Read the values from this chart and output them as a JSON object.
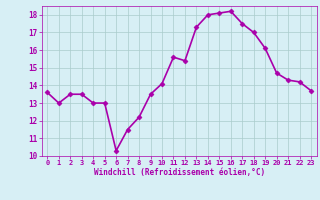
{
  "x": [
    0,
    1,
    2,
    3,
    4,
    5,
    6,
    7,
    8,
    9,
    10,
    11,
    12,
    13,
    14,
    15,
    16,
    17,
    18,
    19,
    20,
    21,
    22,
    23
  ],
  "y": [
    13.6,
    13.0,
    13.5,
    13.5,
    13.0,
    13.0,
    10.3,
    11.5,
    12.2,
    13.5,
    14.1,
    15.6,
    15.4,
    17.3,
    18.0,
    18.1,
    18.2,
    17.5,
    17.0,
    16.1,
    14.7,
    14.3,
    14.2,
    13.7
  ],
  "line_color": "#aa00aa",
  "marker": "D",
  "marker_size": 2.5,
  "bg_color": "#d7eff5",
  "grid_color": "#aacccc",
  "xlabel": "Windchill (Refroidissement éolien,°C)",
  "xlabel_color": "#aa00aa",
  "tick_color": "#aa00aa",
  "xlim": [
    -0.5,
    23.5
  ],
  "ylim": [
    10,
    18.5
  ],
  "yticks": [
    10,
    11,
    12,
    13,
    14,
    15,
    16,
    17,
    18
  ],
  "xticks": [
    0,
    1,
    2,
    3,
    4,
    5,
    6,
    7,
    8,
    9,
    10,
    11,
    12,
    13,
    14,
    15,
    16,
    17,
    18,
    19,
    20,
    21,
    22,
    23
  ],
  "linewidth": 1.2
}
